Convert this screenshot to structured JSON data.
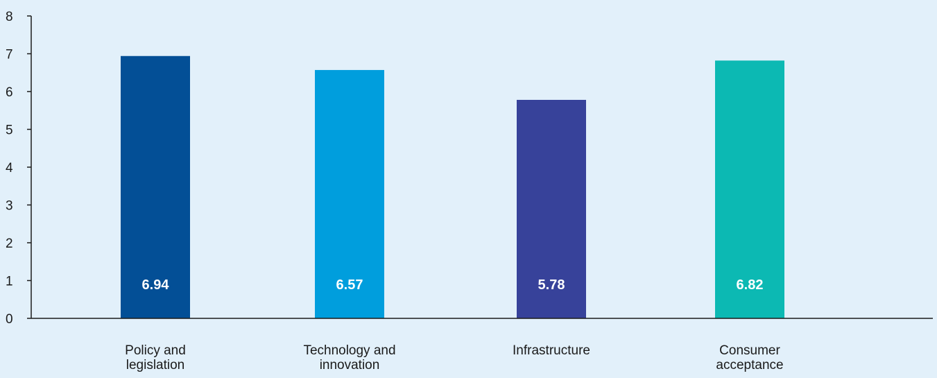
{
  "chart_data": {
    "type": "bar",
    "categories": [
      [
        "Policy and",
        "legislation"
      ],
      [
        "Technology and",
        "innovation"
      ],
      [
        "Infrastructure"
      ],
      [
        "Consumer",
        "acceptance"
      ]
    ],
    "values": [
      6.94,
      6.57,
      5.78,
      6.82
    ],
    "data_labels": [
      "6.94",
      "6.57",
      "5.78",
      "6.82"
    ],
    "colors": [
      "#034f96",
      "#009edd",
      "#37429a",
      "#0cb9b3"
    ],
    "ylim": [
      0,
      8
    ],
    "yticks": [
      "0",
      "1",
      "2",
      "3",
      "4",
      "5",
      "6",
      "7",
      "8"
    ],
    "title": "",
    "xlabel": "",
    "ylabel": "",
    "grid": false,
    "legend": "none"
  }
}
